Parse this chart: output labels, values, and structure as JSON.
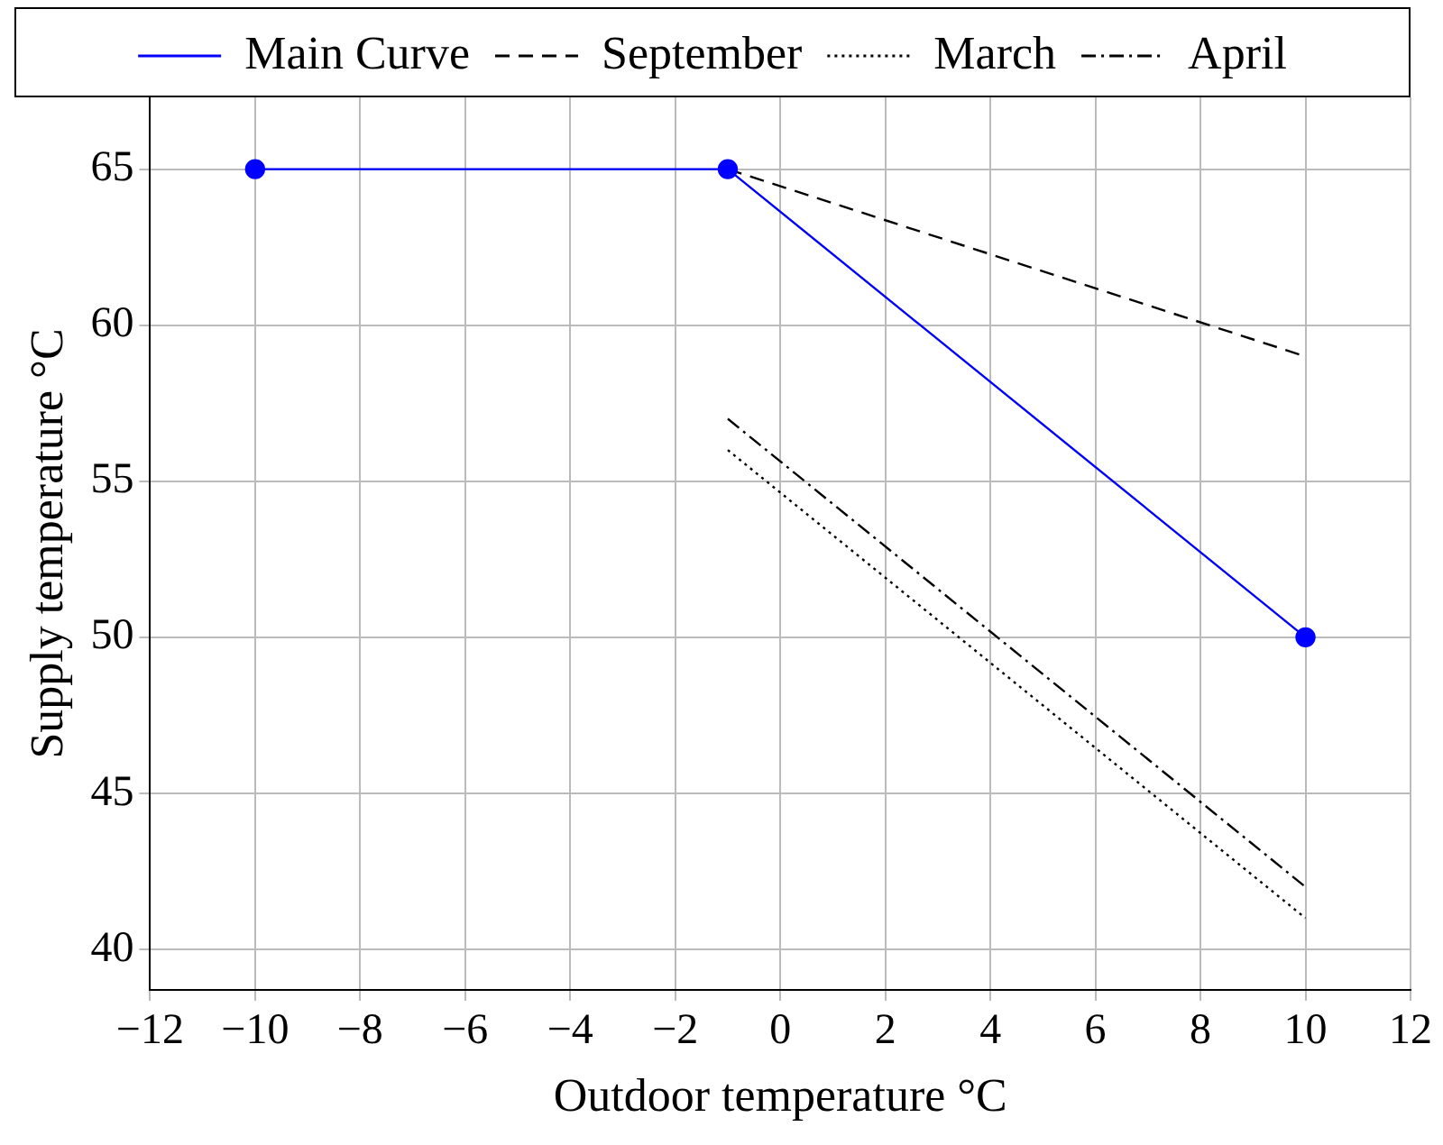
{
  "chart_data": {
    "type": "line",
    "xlabel": "Outdoor temperature °C",
    "ylabel": "Supply temperature °C",
    "xlim": [
      -12,
      12
    ],
    "xticks": [
      -12,
      -10,
      -8,
      -6,
      -4,
      -2,
      0,
      2,
      4,
      6,
      8,
      10,
      12
    ],
    "ylim": [
      38.7,
      67.3
    ],
    "yticks": [
      40,
      45,
      50,
      55,
      60,
      65
    ],
    "grid": true,
    "legend": "top",
    "series": [
      {
        "name": "Main Curve",
        "color": "#0000ff",
        "x": [
          -10,
          -1,
          10
        ],
        "values": [
          65,
          65,
          50
        ],
        "marker": "circle",
        "line_style": "solid"
      },
      {
        "name": "September",
        "color": "#000000",
        "x": [
          -1,
          10
        ],
        "values": [
          65,
          59
        ],
        "marker": "none",
        "line_style": "dashed"
      },
      {
        "name": "March",
        "color": "#000000",
        "x": [
          -1,
          10
        ],
        "values": [
          56,
          41
        ],
        "marker": "none",
        "line_style": "dotted"
      },
      {
        "name": "April",
        "color": "#000000",
        "x": [
          -1,
          10
        ],
        "values": [
          57,
          42
        ],
        "marker": "none",
        "line_style": "dashdot"
      }
    ]
  }
}
